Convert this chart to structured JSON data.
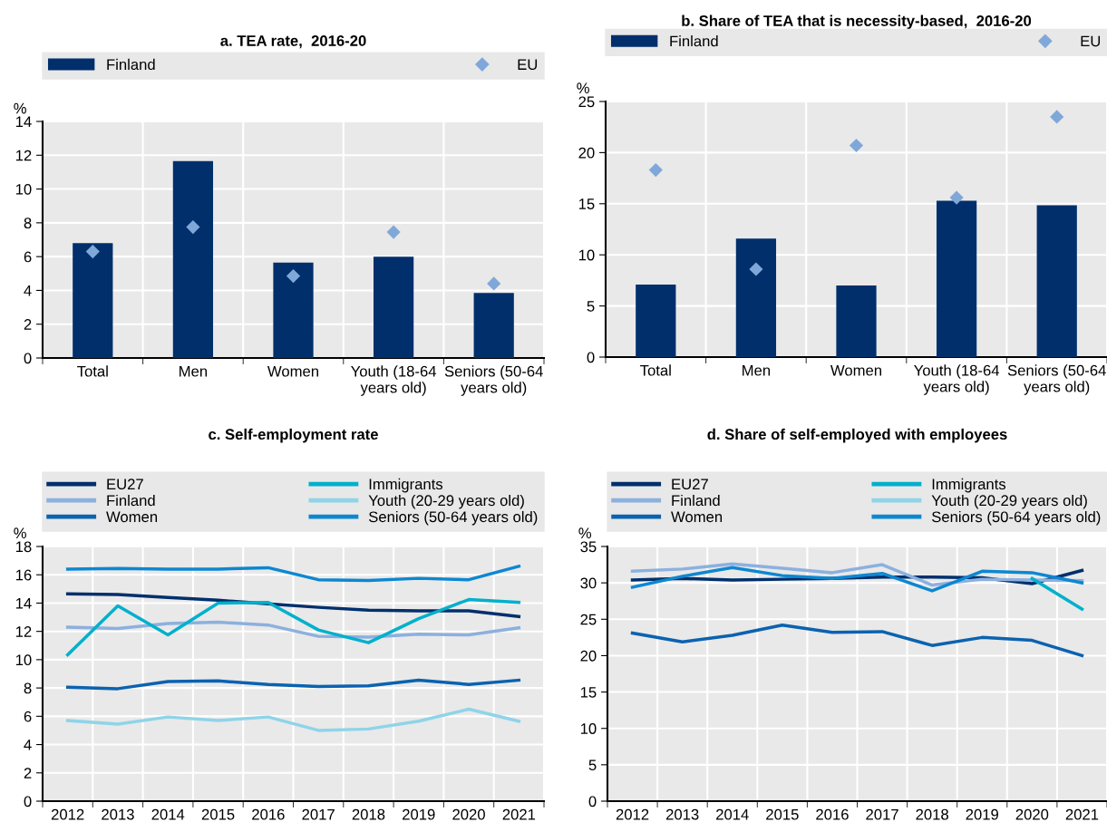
{
  "chart_data": [
    {
      "type": "bar",
      "title": "a. TEA rate,  2016-20",
      "ylabel": "%",
      "categories": [
        "Total",
        "Men",
        "Women",
        "Youth (18-64\nyears old)",
        "Seniors (50-64\nyears old)"
      ],
      "ylim": [
        0,
        14
      ],
      "yticks": [
        0,
        2,
        4,
        6,
        8,
        10,
        12,
        14
      ],
      "grid": true,
      "legend": "top",
      "series": [
        {
          "name": "Finland",
          "type": "bar",
          "color": "#002f6c",
          "values": [
            6.8,
            11.65,
            5.65,
            6.0,
            3.85
          ]
        },
        {
          "name": "EU",
          "type": "scatter",
          "marker": "diamond",
          "color": "#7fa8d9",
          "values": [
            6.3,
            7.75,
            4.85,
            7.45,
            4.4
          ]
        }
      ]
    },
    {
      "type": "bar",
      "title": "b. Share of TEA that is necessity-based,  2016-20",
      "ylabel": "%",
      "categories": [
        "Total",
        "Men",
        "Women",
        "Youth (18-64\nyears old)",
        "Seniors (50-64\nyears old)"
      ],
      "ylim": [
        0,
        25
      ],
      "yticks": [
        0,
        5,
        10,
        15,
        20,
        25
      ],
      "grid": true,
      "legend": "top",
      "series": [
        {
          "name": "Finland",
          "type": "bar",
          "color": "#002f6c",
          "values": [
            7.1,
            11.6,
            7.0,
            15.3,
            14.85
          ]
        },
        {
          "name": "EU",
          "type": "scatter",
          "marker": "diamond",
          "color": "#7fa8d9",
          "values": [
            18.3,
            8.6,
            20.7,
            15.6,
            23.5
          ]
        }
      ]
    },
    {
      "type": "line",
      "title": "c. Self-employment rate",
      "ylabel": "%",
      "categories": [
        "2012",
        "2013",
        "2014",
        "2015",
        "2016",
        "2017",
        "2018",
        "2019",
        "2020",
        "2021"
      ],
      "ylim": [
        0,
        18
      ],
      "yticks": [
        0,
        2,
        4,
        6,
        8,
        10,
        12,
        14,
        16,
        18
      ],
      "grid": true,
      "legend": "top",
      "series": [
        {
          "name": "EU27",
          "color": "#002f6c",
          "values": [
            14.65,
            14.6,
            14.4,
            14.2,
            13.95,
            13.7,
            13.5,
            13.45,
            13.45,
            13.05
          ]
        },
        {
          "name": "Finland",
          "color": "#8cb0df",
          "values": [
            12.3,
            12.2,
            12.55,
            12.65,
            12.45,
            11.65,
            11.6,
            11.8,
            11.75,
            12.25
          ]
        },
        {
          "name": "Women",
          "color": "#0b62b0",
          "values": [
            8.05,
            7.95,
            8.45,
            8.5,
            8.25,
            8.1,
            8.15,
            8.55,
            8.25,
            8.55
          ]
        },
        {
          "name": "Immigrants",
          "color": "#00b0cc",
          "values": [
            10.35,
            13.8,
            11.75,
            14.0,
            14.05,
            12.1,
            11.2,
            12.9,
            14.25,
            14.05
          ]
        },
        {
          "name": "Youth (20-29 years old)",
          "color": "#8fd4e8",
          "values": [
            5.7,
            5.45,
            5.95,
            5.7,
            5.95,
            5.0,
            5.1,
            5.65,
            6.5,
            5.65
          ]
        },
        {
          "name": "Seniors (50-64 years old)",
          "color": "#0d87d0",
          "values": [
            16.4,
            16.45,
            16.4,
            16.4,
            16.5,
            15.65,
            15.6,
            15.75,
            15.65,
            16.6
          ]
        }
      ]
    },
    {
      "type": "line",
      "title": "d. Share of self-employed with employees",
      "ylabel": "%",
      "categories": [
        "2012",
        "2013",
        "2014",
        "2015",
        "2016",
        "2017",
        "2018",
        "2019",
        "2020",
        "2021"
      ],
      "ylim": [
        0,
        35
      ],
      "yticks": [
        0,
        5,
        10,
        15,
        20,
        25,
        30,
        35
      ],
      "grid": true,
      "legend": "top",
      "series": [
        {
          "name": "EU27",
          "color": "#002f6c",
          "values": [
            30.4,
            30.6,
            30.4,
            30.5,
            30.6,
            30.8,
            30.8,
            30.7,
            29.9,
            31.7
          ]
        },
        {
          "name": "Finland",
          "color": "#8cb0df",
          "values": [
            31.6,
            31.9,
            32.6,
            32.0,
            31.4,
            32.5,
            29.7,
            30.5,
            30.4,
            30.3
          ]
        },
        {
          "name": "Women",
          "color": "#0b62b0",
          "values": [
            23.1,
            21.9,
            22.8,
            24.2,
            23.2,
            23.3,
            21.4,
            22.5,
            22.1,
            20.0
          ]
        },
        {
          "name": "Immigrants",
          "color": "#00b0cc",
          "values": [
            null,
            null,
            null,
            null,
            null,
            null,
            null,
            null,
            30.6,
            26.4
          ]
        },
        {
          "name": "Youth (20-29 years old)",
          "color": "#8fd4e8",
          "values": [
            null,
            null,
            null,
            null,
            null,
            null,
            null,
            null,
            null,
            null
          ]
        },
        {
          "name": "Seniors (50-64 years old)",
          "color": "#0d87d0",
          "values": [
            29.4,
            30.9,
            32.1,
            31.0,
            30.6,
            31.3,
            28.9,
            31.6,
            31.4,
            30.0
          ]
        }
      ]
    }
  ]
}
